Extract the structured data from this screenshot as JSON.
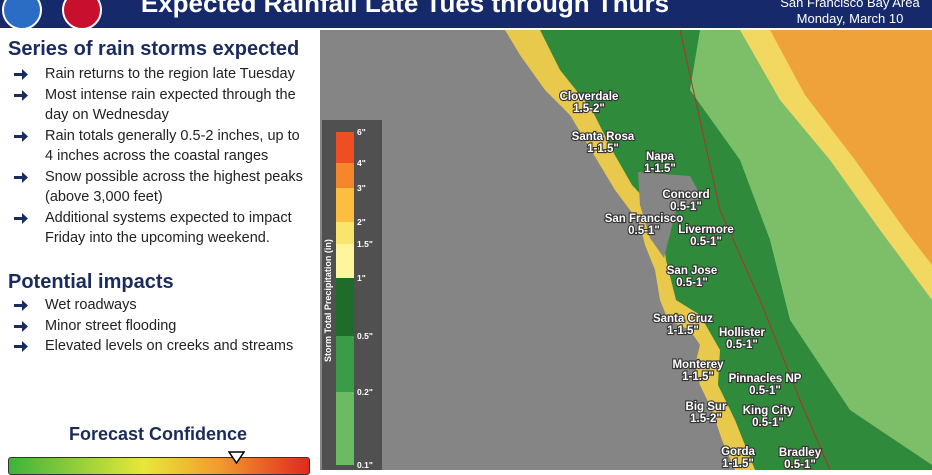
{
  "header": {
    "title": "Expected Rainfall Late Tues through Thurs",
    "region": "San Francisco Bay Area",
    "date": "Monday, March 10"
  },
  "summary": {
    "heading": "Series of rain storms expected",
    "bullets": [
      "Rain returns to the region late Tuesday",
      "Most intense rain expected through the day on Wednesday",
      "Rain totals generally 0.5-2 inches, up to 4 inches across the coastal ranges",
      "Snow possible across the highest peaks (above 3,000 feet)",
      "Additional systems expected to impact Friday into the upcoming weekend."
    ]
  },
  "impacts": {
    "heading": "Potential impacts",
    "bullets": [
      "Wet roadways",
      "Minor street flooding",
      "Elevated levels on creeks and streams"
    ]
  },
  "confidence": {
    "label": "Forecast Confidence"
  },
  "legend": {
    "title": "Storm Total Precipitation (in)",
    "labels": [
      "6\"",
      "4\"",
      "3\"",
      "2\"",
      "1.5\"",
      "1\"",
      "0.5\"",
      "0.2\"",
      "0.1\""
    ]
  },
  "map": {
    "places": [
      {
        "name": "Cloverdale",
        "amount": "1.5-2\""
      },
      {
        "name": "Santa Rosa",
        "amount": "1-1.5\""
      },
      {
        "name": "Napa",
        "amount": "1-1.5\""
      },
      {
        "name": "Concord",
        "amount": "0.5-1\""
      },
      {
        "name": "San Francisco",
        "amount": "0.5-1\""
      },
      {
        "name": "Livermore",
        "amount": "0.5-1\""
      },
      {
        "name": "San Jose",
        "amount": "0.5-1\""
      },
      {
        "name": "Santa Cruz",
        "amount": "1-1.5\""
      },
      {
        "name": "Hollister",
        "amount": "0.5-1\""
      },
      {
        "name": "Monterey",
        "amount": "1-1.5\""
      },
      {
        "name": "Pinnacles NP",
        "amount": "0.5-1\""
      },
      {
        "name": "Big Sur",
        "amount": "1.5-2\""
      },
      {
        "name": "King City",
        "amount": "0.5-1\""
      },
      {
        "name": "Gorda",
        "amount": "1-1.5\""
      },
      {
        "name": "Bradley",
        "amount": "0.5-1\""
      }
    ]
  }
}
